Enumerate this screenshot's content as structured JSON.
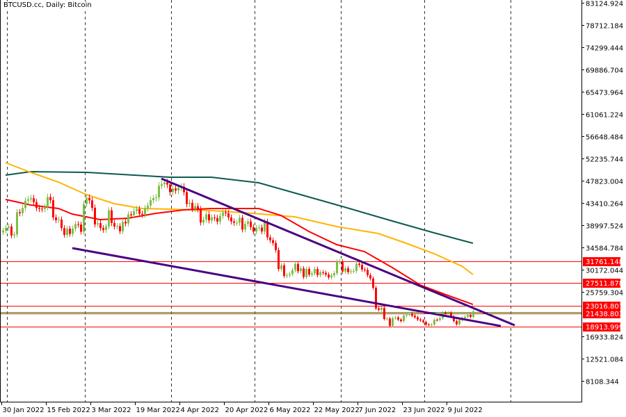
{
  "window": {
    "title": "BTCUSD.cc, Daily:  Bitcoin"
  },
  "chart_data": {
    "type": "candlestick",
    "symbol": "BTCUSD.cc",
    "timeframe": "Daily",
    "title": "BTCUSD.cc, Daily:  Bitcoin",
    "ylim": [
      3700,
      83800
    ],
    "grid": "vertical dashed at month starts",
    "colors": {
      "up": "#7dbf45",
      "down": "#ff0000",
      "ma_fast": "#ff0000",
      "ma_mid": "#ffb400",
      "ma_slow": "#0b5a4e",
      "trendline": "#4b0082",
      "level": "#ff0000",
      "current": "#00b000",
      "axis": "#000000"
    },
    "price_ticks": [
      "83124.924",
      "78712.184",
      "74299.444",
      "69886.704",
      "65473.964",
      "61061.224",
      "56648.484",
      "52235.744",
      "47823.004",
      "43410.264",
      "38997.524",
      "34584.784",
      "30172.044",
      "25759.304",
      "16933.824",
      "12521.084",
      "8108.344"
    ],
    "date_ticks": [
      {
        "label": "30 Jan 2022",
        "date": "2022-01-30"
      },
      {
        "label": "15 Feb 2022",
        "date": "2022-02-15"
      },
      {
        "label": "3 Mar 2022",
        "date": "2022-03-03"
      },
      {
        "label": "19 Mar 2022",
        "date": "2022-03-19"
      },
      {
        "label": "4 Apr 2022",
        "date": "2022-04-04"
      },
      {
        "label": "20 Apr 2022",
        "date": "2022-04-20"
      },
      {
        "label": "6 May 2022",
        "date": "2022-05-06"
      },
      {
        "label": "22 May 2022",
        "date": "2022-05-22"
      },
      {
        "label": "7 Jun 2022",
        "date": "2022-06-07"
      },
      {
        "label": "23 Jun 2022",
        "date": "2022-06-23"
      },
      {
        "label": "9 Jul 2022",
        "date": "2022-07-09"
      }
    ],
    "month_grid": [
      "2022-02-01",
      "2022-03-01",
      "2022-04-01",
      "2022-05-01",
      "2022-06-01",
      "2022-07-01",
      "2022-08-01"
    ],
    "levels": [
      {
        "price": 31761.148,
        "label": "31761.148"
      },
      {
        "price": 27511.878,
        "label": "27511.878"
      },
      {
        "price": 23016.807,
        "label": "23016.807"
      },
      {
        "price": 21438.803,
        "label": "21438.803"
      },
      {
        "price": 18913.999,
        "label": "18913.999"
      }
    ],
    "current_price": 21800,
    "first_date": "2022-01-30",
    "closes": [
      37920,
      38480,
      38740,
      36950,
      37150,
      41570,
      41380,
      42410,
      43840,
      44120,
      44340,
      43570,
      42410,
      42240,
      42200,
      42590,
      44580,
      43960,
      40540,
      40000,
      40120,
      38430,
      37070,
      38290,
      37260,
      38330,
      39210,
      39110,
      37700,
      43190,
      44420,
      43920,
      42450,
      39150,
      39400,
      38420,
      38060,
      38740,
      41940,
      39440,
      38730,
      38810,
      37790,
      39670,
      39340,
      41140,
      40950,
      41800,
      42190,
      41250,
      41080,
      42360,
      42890,
      43960,
      44350,
      44500,
      46820,
      47130,
      47470,
      47060,
      45540,
      46280,
      45870,
      46450,
      46620,
      45560,
      43210,
      43450,
      42250,
      42760,
      42160,
      39530,
      40080,
      41150,
      39940,
      40550,
      40420,
      39720,
      40830,
      41500,
      41370,
      40530,
      39740,
      39470,
      39470,
      40460,
      38120,
      39240,
      39740,
      38600,
      37710,
      38470,
      38530,
      37750,
      39700,
      36580,
      36010,
      35470,
      34060,
      30300,
      31020,
      28940,
      29050,
      29280,
      30080,
      31300,
      29860,
      30420,
      28720,
      30310,
      29200,
      29430,
      30320,
      29100,
      29650,
      29540,
      29200,
      28630,
      29030,
      29470,
      31730,
      31790,
      29800,
      30450,
      29700,
      29860,
      29910,
      31370,
      31130,
      30200,
      30110,
      29090,
      28420,
      26570,
      22490,
      22210,
      22580,
      20380,
      20470,
      19020,
      20550,
      20700,
      20280,
      19960,
      21060,
      21230,
      21500,
      21030,
      20730,
      20280,
      20100,
      19780,
      19300,
      19240,
      19300,
      20230,
      20190,
      20550,
      21620,
      21590,
      21590,
      20860,
      19970,
      19330,
      20210,
      20580,
      20830,
      21200,
      20790,
      21900
    ],
    "moving_averages": [
      {
        "key": "ma_slow",
        "points": [
          [
            "2022-01-31",
            48926
          ],
          [
            "2022-02-09",
            49616
          ],
          [
            "2022-03-01",
            49478
          ],
          [
            "2022-03-31",
            48513
          ],
          [
            "2022-04-15",
            48513
          ],
          [
            "2022-05-02",
            47410
          ],
          [
            "2022-05-17",
            45065
          ],
          [
            "2022-06-01",
            42721
          ],
          [
            "2022-06-19",
            39825
          ],
          [
            "2022-07-04",
            37481
          ],
          [
            "2022-07-18",
            35412
          ]
        ]
      },
      {
        "key": "ma_mid",
        "points": [
          [
            "2022-01-31",
            51408
          ],
          [
            "2022-02-09",
            49478
          ],
          [
            "2022-02-19",
            47547
          ],
          [
            "2022-03-01",
            45065
          ],
          [
            "2022-03-11",
            43272
          ],
          [
            "2022-03-21",
            42307
          ],
          [
            "2022-04-01",
            42169
          ],
          [
            "2022-04-15",
            41893
          ],
          [
            "2022-04-30",
            41341
          ],
          [
            "2022-05-15",
            40652
          ],
          [
            "2022-05-30",
            38721
          ],
          [
            "2022-06-14",
            37342
          ],
          [
            "2022-06-24",
            35412
          ],
          [
            "2022-07-04",
            33343
          ],
          [
            "2022-07-14",
            30861
          ],
          [
            "2022-07-18",
            29206
          ]
        ]
      },
      {
        "key": "ma_fast",
        "points": [
          [
            "2022-01-31",
            44100
          ],
          [
            "2022-02-09",
            42997
          ],
          [
            "2022-02-19",
            42307
          ],
          [
            "2022-02-24",
            41204
          ],
          [
            "2022-03-06",
            40100
          ],
          [
            "2022-03-16",
            40376
          ],
          [
            "2022-03-26",
            41341
          ],
          [
            "2022-04-05",
            42031
          ],
          [
            "2022-04-15",
            42307
          ],
          [
            "2022-05-02",
            42307
          ],
          [
            "2022-05-10",
            40928
          ],
          [
            "2022-05-20",
            37756
          ],
          [
            "2022-05-30",
            35136
          ],
          [
            "2022-06-09",
            33757
          ],
          [
            "2022-06-19",
            30585
          ],
          [
            "2022-06-29",
            27137
          ],
          [
            "2022-07-09",
            25069
          ],
          [
            "2022-07-18",
            23276
          ]
        ]
      }
    ],
    "trendlines": [
      {
        "from": [
          "2022-03-28",
          48236
        ],
        "to": [
          "2022-08-02",
          19136
        ]
      },
      {
        "from": [
          "2022-02-24",
          34447
        ],
        "to": [
          "2022-07-28",
          18997
        ]
      }
    ]
  }
}
